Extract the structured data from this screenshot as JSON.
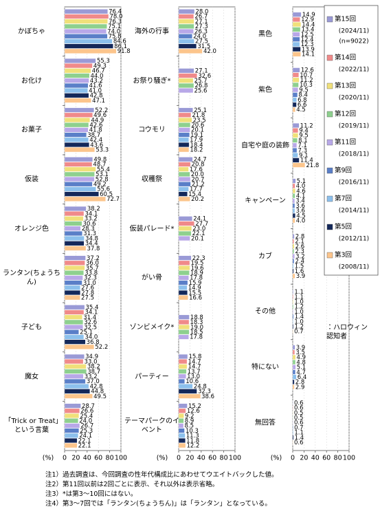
{
  "chart_data": [
    {
      "type": "bar",
      "orientation": "horizontal",
      "unit_label": "(%)",
      "categories": [
        "かぼちゃ",
        "お化け",
        "お菓子",
        "仮装",
        "オレンジ色",
        "ランタン(ちょうちん)",
        "子ども",
        "魔女",
        "「Trick or Treat」という言葉"
      ],
      "values": [
        [
          76.4,
          55.3,
          52.2,
          49.8,
          38.2,
          37.2,
          35.4,
          34.9,
          28.7
        ],
        [
          78.0,
          49.3,
          49.6,
          48.7,
          34.1,
          36.0,
          34.1,
          33.0,
          26.6
        ],
        [
          76.3,
          46.7,
          44.9,
          55.4,
          33.2,
          35.7,
          31.4,
          38.2,
          25.4
        ],
        [
          75.1,
          44.0,
          42.6,
          53.1,
          30.6,
          33.8,
          32.6,
          38.7,
          24.0
        ],
        [
          74.0,
          43.2,
          41.8,
          52.8,
          28.3,
          32.3,
          32.5,
          33.2,
          26.7
        ],
        [
          75.8,
          41.6,
          38.7,
          49.2,
          31.3,
          31.0,
          25.1,
          37.0,
          25.3
        ],
        [
          84.6,
          41.0,
          42.4,
          55.6,
          34.8,
          27.6,
          34.0,
          42.8,
          24.1
        ],
        [
          86.1,
          42.8,
          43.6,
          60.5,
          34.4,
          27.8,
          36.8,
          44.8,
          22.1
        ],
        [
          91.8,
          47.1,
          53.3,
          72.7,
          37.8,
          27.5,
          52.2,
          49.5,
          22.1
        ]
      ],
      "value_labels": [
        [
          "76.4",
          "55.3",
          "52.2",
          "49.8",
          "38.2",
          "37.2",
          "35.4",
          "34.9",
          "28.7"
        ],
        [
          "78.0",
          "49.3",
          "49.6",
          "48.7",
          "34.1",
          "36.0",
          "34.1",
          "33.0",
          "26.6"
        ],
        [
          "76.3",
          "46.7",
          "44.9",
          "55.4",
          "33.2",
          "35.7",
          "31.4",
          "38.2",
          "25.4"
        ],
        [
          "75.1",
          "44.0",
          "42.6",
          "53.1",
          "30.6",
          "33.8",
          "32.6",
          "38.7",
          "24.0"
        ],
        [
          "74.0",
          "43.2",
          "41.8",
          "52.8",
          "28.3",
          "32.3",
          "32.5",
          "33.2",
          "26.7"
        ],
        [
          "75.8",
          "41.6",
          "38.7",
          "49.2",
          "31.3",
          "31.0",
          "25.1",
          "37.0",
          "25.3"
        ],
        [
          "84.6",
          "41.0",
          "42.4",
          "55.6",
          "34.8",
          "27.6",
          "34.0",
          "42.8",
          "24.1"
        ],
        [
          "86.1",
          "42.8",
          "43.6",
          "60.5",
          "34.4",
          "27.8",
          "36.8",
          "44.8",
          "22.1"
        ],
        [
          "91.8",
          "47.1",
          "53.3",
          "72.7",
          "37.8",
          "27.5",
          "52.2",
          "49.5",
          "22.1"
        ]
      ],
      "xlim": [
        0,
        100
      ],
      "xticks": [
        0,
        20,
        40,
        60,
        80,
        100
      ]
    },
    {
      "type": "bar",
      "orientation": "horizontal",
      "unit_label": "(%)",
      "categories": [
        "海外の行事",
        "お祭り騒ぎ*",
        "コウモリ",
        "収穫祭",
        "仮装パレード*",
        "がい骨",
        "ゾンビメイク*",
        "パーティー",
        "テーマパークのイベント"
      ],
      "values": [
        [
          28.0,
          27.1,
          25.1,
          24.7,
          24.1,
          22.3,
          18.8,
          15.8,
          15.2
        ],
        [
          26.7,
          32.6,
          21.8,
          20.8,
          27.7,
          19.5,
          18.3,
          14.7,
          12.6
        ],
        [
          27.1,
          25.7,
          23.5,
          17.6,
          23.0,
          19.6,
          19.0,
          14.7,
          9.2
        ],
        [
          27.3,
          26.8,
          20.6,
          20.0,
          22.1,
          18.9,
          18.5,
          13.7,
          8.9
        ],
        [
          26.3,
          25.6,
          20.1,
          20.7,
          20.1,
          17.8,
          17.8,
          13.0,
          8.5
        ],
        [
          24.0,
          null,
          19.1,
          21.2,
          null,
          15.9,
          null,
          10.6,
          10.3
        ],
        [
          27.5,
          null,
          17.9,
          17.7,
          null,
          14.9,
          null,
          24.8,
          11.3
        ],
        [
          31.5,
          null,
          18.4,
          15.4,
          null,
          15.5,
          null,
          32.3,
          11.8
        ],
        [
          42.0,
          null,
          18.2,
          20.2,
          null,
          16.6,
          null,
          38.6,
          12.2
        ]
      ],
      "value_labels": [
        [
          "28.0",
          "27.1",
          "25.1",
          "24.7",
          "24.1",
          "22.3",
          "18.8",
          "15.8",
          "15.2"
        ],
        [
          "26.7",
          "32.6",
          "21.8",
          "20.8",
          "27.7",
          "19.5",
          "18.3",
          "14.7",
          "12.6"
        ],
        [
          "27.1",
          "25.7",
          "23.5",
          "17.6",
          "23.0",
          "19.6",
          "19.0",
          "14.7",
          "9.2"
        ],
        [
          "27.3",
          "26.8",
          "20.6",
          "20.0",
          "22.1",
          "18.9",
          "18.5",
          "13.7",
          "8.9"
        ],
        [
          "26.3",
          "25.6",
          "20.1",
          "20.7",
          "20.1",
          "17.8",
          "17.8",
          "13.0",
          "8.5"
        ],
        [
          "24.0",
          null,
          "19.1",
          "21.2",
          null,
          "15.9",
          null,
          "10.6",
          "10.3"
        ],
        [
          "27.5",
          null,
          "17.9",
          "17.7",
          null,
          "14.9",
          null,
          "24.8",
          "11.3"
        ],
        [
          "31.5",
          null,
          "18.4",
          "15.4",
          null,
          "15.5",
          null,
          "32.3",
          "11.8"
        ],
        [
          "42.0",
          null,
          "18.2",
          "20.2",
          null,
          "16.6",
          null,
          "38.6",
          "12.2"
        ]
      ],
      "xlim": [
        0,
        100
      ],
      "xticks": [
        0,
        20,
        40,
        60,
        80,
        100
      ]
    },
    {
      "type": "bar",
      "orientation": "horizontal",
      "unit_label": "(%)",
      "categories": [
        "黒色",
        "紫色",
        "自宅や庭の装飾",
        "キャンペーン",
        "カブ",
        "その他",
        "特にない",
        "無回答"
      ],
      "values": [
        [
          14.9,
          12.6,
          11.2,
          5.1,
          2.8,
          1.1,
          3.9,
          0.6
        ],
        [
          12.9,
          10.7,
          9.4,
          4.0,
          2.1,
          1.1,
          3.5,
          0.6
        ],
        [
          14.4,
          11.2,
          9.5,
          4.6,
          2.6,
          1.0,
          4.9,
          0.5
        ],
        [
          13.4,
          10.3,
          8.1,
          4.1,
          2.3,
          1.2,
          4.8,
          0.5
        ],
        [
          12.5,
          9.5,
          7.1,
          3.4,
          3.2,
          1.0,
          5.1,
          0.6
        ],
        [
          12.4,
          8.4,
          7.3,
          3.6,
          2.4,
          1.4,
          4.7,
          0.7
        ],
        [
          12.3,
          6.8,
          9.1,
          3.6,
          1.5,
          1.0,
          6.4,
          1.1
        ],
        [
          13.9,
          6.6,
          11.4,
          4.5,
          1.6,
          1.2,
          2.8,
          1.4
        ],
        [
          14.1,
          4.5,
          21.8,
          4.0,
          3.9,
          0.7,
          2.9,
          0.6
        ]
      ],
      "value_labels": [
        [
          "14.9",
          "12.6",
          "11.2",
          "5.1",
          "2.8",
          "1.1",
          "3.9",
          "0.6"
        ],
        [
          "12.9",
          "10.7",
          "9.4",
          "4.0",
          "2.1",
          "1.1",
          "3.5",
          "0.6"
        ],
        [
          "14.4",
          "11.2",
          "9.5",
          "4.6",
          "2.6",
          "1.0",
          "4.9",
          "0.5"
        ],
        [
          "13.4",
          "10.3",
          "8.1",
          "4.1",
          "2.3",
          "1.2",
          "4.8",
          "0.5"
        ],
        [
          "12.5",
          "9.5",
          "7.1",
          "3.4",
          "3.2",
          "1.0",
          "5.1",
          "0.6"
        ],
        [
          "12.4",
          "8.4",
          "7.3",
          "3.6",
          "2.4",
          "1.4",
          "4.7",
          "0.7"
        ],
        [
          "12.3",
          "6.8",
          "9.1",
          "3.6",
          "1.5",
          "1.0",
          "6.4",
          "1.1"
        ],
        [
          "13.9",
          "6.6",
          "11.4",
          "4.5",
          "1.6",
          "1.2",
          "2.8",
          "1.4"
        ],
        [
          "14.1",
          "4.5",
          "21.8",
          "4.0",
          "3.9",
          "0.7",
          "2.9",
          "0.6"
        ]
      ],
      "xlim": [
        0,
        100
      ],
      "xticks": [
        0,
        20,
        40,
        60,
        80,
        100
      ]
    }
  ],
  "legend": {
    "entries": [
      {
        "name": "第15回",
        "period": "(2024/11)",
        "color": "#9a9ad6"
      },
      {
        "name": "第14回",
        "period": "(2022/11)",
        "color": "#f08a8a"
      },
      {
        "name": "第13回",
        "period": "(2020/11)",
        "color": "#f0e07a"
      },
      {
        "name": "第12回",
        "period": "(2019/11)",
        "color": "#8ed08e"
      },
      {
        "name": "第11回",
        "period": "(2018/11)",
        "color": "#b8a8e8"
      },
      {
        "name": "第9回",
        "period": "(2016/11)",
        "color": "#5a7fc8"
      },
      {
        "name": "第7回",
        "period": "(2014/11)",
        "color": "#8cc0ec"
      },
      {
        "name": "第5回",
        "period": "(2012/11)",
        "color": "#14285a"
      },
      {
        "name": "第3回",
        "period": "(2008/11)",
        "color": "#fcc58c"
      }
    ],
    "sample": "(n=9022)"
  },
  "annotation": "：ハロウィン認知者",
  "notes": [
    "注1）過去調査は、今回調査の性年代構成比にあわせてウエイトバックした値。",
    "注2）第11回以前は2回ごとに表示、それ以外は表示省略。",
    "注3）*は第3〜10回にはない。",
    "注4）第3〜7回では「ランタン(ちょうちん)」は「ランタン」となっている。"
  ]
}
